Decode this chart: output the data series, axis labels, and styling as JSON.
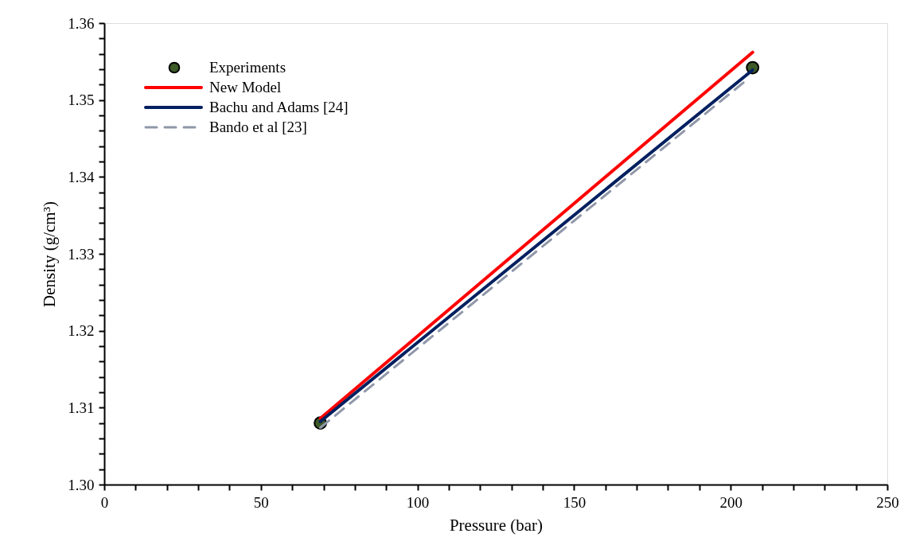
{
  "chart_data": {
    "type": "line",
    "xlabel": "Pressure (bar)",
    "ylabel": "Density (g/cm³)",
    "xlim": [
      0,
      250
    ],
    "ylim": [
      1.3,
      1.36
    ],
    "xticks": [
      0,
      {
        "value": 10,
        "label": null
      },
      {
        "value": 20,
        "label": null
      },
      {
        "value": 30,
        "label": null
      },
      {
        "value": 40,
        "label": null
      },
      50,
      {
        "value": 60,
        "label": null
      },
      {
        "value": 70,
        "label": null
      },
      {
        "value": 80,
        "label": null
      },
      {
        "value": 90,
        "label": null
      },
      100,
      {
        "value": 110,
        "label": null
      },
      {
        "value": 120,
        "label": null
      },
      {
        "value": 130,
        "label": null
      },
      {
        "value": 140,
        "label": null
      },
      150,
      {
        "value": 160,
        "label": null
      },
      {
        "value": 170,
        "label": null
      },
      {
        "value": 180,
        "label": null
      },
      {
        "value": 190,
        "label": null
      },
      200,
      {
        "value": 210,
        "label": null
      },
      {
        "value": 220,
        "label": null
      },
      {
        "value": 230,
        "label": null
      },
      {
        "value": 240,
        "label": null
      },
      250
    ],
    "yticks": [
      {
        "value": 1.3,
        "label": "1.30"
      },
      {
        "value": 1.302,
        "label": null
      },
      {
        "value": 1.304,
        "label": null
      },
      {
        "value": 1.306,
        "label": null
      },
      {
        "value": 1.308,
        "label": null
      },
      {
        "value": 1.31,
        "label": "1.31"
      },
      {
        "value": 1.312,
        "label": null
      },
      {
        "value": 1.314,
        "label": null
      },
      {
        "value": 1.316,
        "label": null
      },
      {
        "value": 1.318,
        "label": null
      },
      {
        "value": 1.32,
        "label": "1.32"
      },
      {
        "value": 1.322,
        "label": null
      },
      {
        "value": 1.324,
        "label": null
      },
      {
        "value": 1.326,
        "label": null
      },
      {
        "value": 1.328,
        "label": null
      },
      {
        "value": 1.33,
        "label": "1.33"
      },
      {
        "value": 1.332,
        "label": null
      },
      {
        "value": 1.334,
        "label": null
      },
      {
        "value": 1.336,
        "label": null
      },
      {
        "value": 1.338,
        "label": null
      },
      {
        "value": 1.34,
        "label": "1.34"
      },
      {
        "value": 1.342,
        "label": null
      },
      {
        "value": 1.344,
        "label": null
      },
      {
        "value": 1.346,
        "label": null
      },
      {
        "value": 1.348,
        "label": null
      },
      {
        "value": 1.35,
        "label": "1.35"
      },
      {
        "value": 1.352,
        "label": null
      },
      {
        "value": 1.354,
        "label": null
      },
      {
        "value": 1.356,
        "label": null
      },
      {
        "value": 1.358,
        "label": null
      },
      {
        "value": 1.36,
        "label": "1.36"
      }
    ],
    "grid": false,
    "legend": "top left",
    "series": [
      {
        "name": "Experiments",
        "type": "scatter",
        "marker": "circle",
        "color": "#3d5a27",
        "x": [
          69,
          207
        ],
        "values": [
          1.308,
          1.3542
        ]
      },
      {
        "name": "New Model",
        "type": "line",
        "line_style": "solid",
        "color": "#ff0000",
        "x": [
          69,
          207
        ],
        "values": [
          1.3086,
          1.3562
        ]
      },
      {
        "name": "Bachu and Adams [24]",
        "type": "line",
        "line_style": "solid",
        "color": "#002060",
        "x": [
          69,
          207
        ],
        "values": [
          1.3082,
          1.3539
        ]
      },
      {
        "name": "Bando et al [23]",
        "type": "line",
        "line_style": "dashed",
        "color": "#8f97a8",
        "x": [
          69,
          206
        ],
        "values": [
          1.3074,
          1.3529
        ]
      }
    ]
  }
}
